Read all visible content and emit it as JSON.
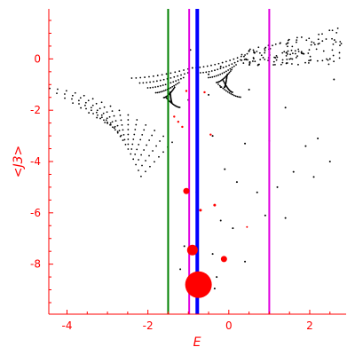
{
  "chart_data": {
    "type": "scatter",
    "title": "",
    "xlabel": "E",
    "ylabel": "<J3>",
    "xlim": [
      -4.45,
      2.9
    ],
    "ylim": [
      -9.95,
      1.95
    ],
    "xticks": [
      -4,
      -2,
      0,
      2
    ],
    "yticks": [
      0,
      -2,
      -4,
      -6,
      -8
    ],
    "grid": false,
    "colors": {
      "axis": "#ff0000",
      "points": "#000000",
      "highlight": "#ff0000",
      "line_green": "#008000",
      "line_magenta": "#e000e0",
      "line_blue": "#0000ff"
    },
    "vertical_lines": [
      {
        "x": -1.5,
        "color": "#008000",
        "width": 2
      },
      {
        "x": -0.98,
        "color": "#e000e0",
        "width": 2
      },
      {
        "x": -0.78,
        "color": "#0000ff",
        "width": 4
      },
      {
        "x": 1.0,
        "color": "#e000e0",
        "width": 2
      }
    ],
    "bands": [
      {
        "x0": -4.45,
        "x1": -1.4,
        "y0": -1.15,
        "y1": -3.25,
        "n": 8
      },
      {
        "x0": -2.4,
        "x1": -0.9,
        "y0": -0.75,
        "y1": -0.35,
        "n": 7
      },
      {
        "x0": -0.9,
        "x1": 0.4,
        "y0": -0.35,
        "y1": 0.15,
        "n": 7
      }
    ],
    "cluster": {
      "x0": 0.3,
      "x1": 2.85,
      "y_min": -0.25,
      "y_max": 1.3,
      "n": 150
    },
    "scatter_points": [
      [
        -0.95,
        0.35
      ],
      [
        -0.5,
        -0.6
      ],
      [
        -0.2,
        -0.3
      ],
      [
        -1.0,
        -1.6
      ],
      [
        -0.5,
        -1.4
      ],
      [
        -0.2,
        -1.1
      ],
      [
        0.5,
        -1.2
      ],
      [
        1.4,
        -1.9
      ],
      [
        2.6,
        -0.8
      ],
      [
        2.5,
        0.0
      ],
      [
        -0.4,
        -3.0
      ],
      [
        0.4,
        -3.3
      ],
      [
        1.0,
        -3.2
      ],
      [
        1.9,
        -3.4
      ],
      [
        2.2,
        -3.1
      ],
      [
        2.5,
        -4.0
      ],
      [
        -0.1,
        -4.3
      ],
      [
        0.2,
        -4.8
      ],
      [
        0.7,
        -5.2
      ],
      [
        1.2,
        -5.0
      ],
      [
        1.6,
        -4.4
      ],
      [
        2.1,
        -4.6
      ],
      [
        -0.8,
        -5.2
      ],
      [
        0.9,
        -6.1
      ],
      [
        -0.2,
        -6.3
      ],
      [
        0.1,
        -6.6
      ],
      [
        1.4,
        -6.2
      ],
      [
        -1.1,
        -7.3
      ],
      [
        -0.4,
        -7.6
      ],
      [
        0.4,
        -7.9
      ],
      [
        -1.2,
        -8.2
      ],
      [
        -0.3,
        -8.5
      ],
      [
        -1.0,
        -8.9
      ],
      [
        -0.6,
        -9.0
      ],
      [
        -0.35,
        -8.95
      ]
    ],
    "red_points": [
      {
        "x": -1.05,
        "y": -5.15,
        "r": 3.5
      },
      {
        "x": -0.9,
        "y": -7.45,
        "r": 6
      },
      {
        "x": -0.75,
        "y": -8.8,
        "r": 15
      },
      {
        "x": -0.12,
        "y": -7.8,
        "r": 3.5
      },
      {
        "x": -0.35,
        "y": -5.7,
        "r": 1.5
      },
      {
        "x": -0.7,
        "y": -5.9,
        "r": 1.5
      },
      {
        "x": -1.05,
        "y": -1.25,
        "r": 1.2
      },
      {
        "x": -0.6,
        "y": -1.3,
        "r": 1.2
      },
      {
        "x": -1.35,
        "y": -2.25,
        "r": 1.2
      },
      {
        "x": -1.25,
        "y": -2.45,
        "r": 1.2
      },
      {
        "x": -1.15,
        "y": -2.65,
        "r": 1.2
      },
      {
        "x": -0.45,
        "y": -2.95,
        "r": 1.2
      },
      {
        "x": 0.45,
        "y": -6.55,
        "r": 1.0
      }
    ]
  }
}
